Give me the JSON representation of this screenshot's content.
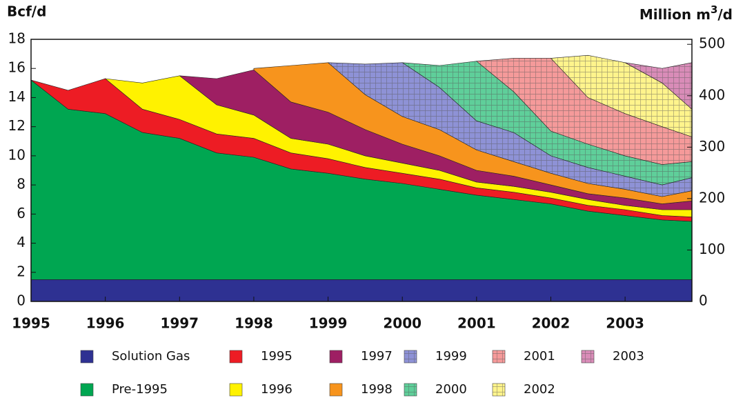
{
  "chart_data": {
    "type": "stacked_area",
    "ylabel": "Bcf/d",
    "y2label": "Million m",
    "y2label_sup": "3",
    "y2label_suffix": "/d",
    "x": [
      1995,
      1995.5,
      1996,
      1996.5,
      1997,
      1997.5,
      1998,
      1998.5,
      1999,
      1999.5,
      2000,
      2000.5,
      2001,
      2001.5,
      2002,
      2002.5,
      2003,
      2003.5,
      2003.9
    ],
    "xlim": [
      1995,
      2003.9
    ],
    "xticks": [
      1995,
      1996,
      1997,
      1998,
      1999,
      2000,
      2001,
      2002,
      2003
    ],
    "ylim": [
      0,
      18
    ],
    "yticks": [
      0,
      2,
      4,
      6,
      8,
      10,
      12,
      14,
      16,
      18
    ],
    "y2lim": [
      0,
      509.7
    ],
    "y2ticks": [
      0,
      100,
      200,
      300,
      400,
      500
    ],
    "series": [
      {
        "name": "Solution Gas",
        "color": "#2e3192",
        "hatch": false,
        "values": [
          1.5,
          1.5,
          1.5,
          1.5,
          1.5,
          1.5,
          1.5,
          1.5,
          1.5,
          1.5,
          1.5,
          1.5,
          1.5,
          1.5,
          1.5,
          1.5,
          1.5,
          1.5,
          1.5
        ]
      },
      {
        "name": "Pre-1995",
        "color": "#00a651",
        "hatch": false,
        "values": [
          13.7,
          11.7,
          11.4,
          10.1,
          9.7,
          8.7,
          8.4,
          7.6,
          7.3,
          6.9,
          6.6,
          6.2,
          5.8,
          5.5,
          5.2,
          4.7,
          4.4,
          4.1,
          4.0
        ]
      },
      {
        "name": "1995",
        "color": "#ed1c24",
        "hatch": false,
        "values": [
          0,
          1.3,
          2.4,
          1.6,
          1.3,
          1.3,
          1.3,
          1.1,
          1.0,
          0.8,
          0.7,
          0.7,
          0.5,
          0.5,
          0.4,
          0.4,
          0.4,
          0.3,
          0.3
        ]
      },
      {
        "name": "1996",
        "color": "#fff200",
        "hatch": false,
        "values": [
          null,
          null,
          0,
          1.8,
          3.0,
          2.0,
          1.6,
          1.0,
          1.0,
          0.8,
          0.7,
          0.6,
          0.4,
          0.4,
          0.4,
          0.4,
          0.3,
          0.4,
          0.5
        ]
      },
      {
        "name": "1997",
        "color": "#9e1f63",
        "hatch": false,
        "values": [
          null,
          null,
          null,
          null,
          0,
          1.8,
          3.1,
          2.5,
          2.2,
          1.8,
          1.3,
          1.0,
          0.8,
          0.7,
          0.5,
          0.4,
          0.5,
          0.4,
          0.6
        ]
      },
      {
        "name": "1998",
        "color": "#f7941d",
        "hatch": false,
        "values": [
          null,
          null,
          null,
          null,
          null,
          null,
          0.1,
          2.5,
          3.4,
          2.4,
          1.9,
          1.8,
          1.4,
          1.0,
          0.8,
          0.7,
          0.6,
          0.5,
          0.7
        ]
      },
      {
        "name": "1999",
        "color": "#8e92d6",
        "hatch": true,
        "values": [
          null,
          null,
          null,
          null,
          null,
          null,
          null,
          null,
          0,
          2.1,
          3.7,
          2.9,
          2.0,
          2.0,
          1.2,
          1.1,
          0.9,
          0.8,
          0.9
        ]
      },
      {
        "name": "2000",
        "color": "#5fcf9a",
        "hatch": true,
        "values": [
          null,
          null,
          null,
          null,
          null,
          null,
          null,
          null,
          null,
          null,
          0,
          1.5,
          4.1,
          2.8,
          1.7,
          1.6,
          1.4,
          1.4,
          1.1
        ]
      },
      {
        "name": "2001",
        "color": "#f59a9a",
        "hatch": true,
        "values": [
          null,
          null,
          null,
          null,
          null,
          null,
          null,
          null,
          null,
          null,
          null,
          null,
          0,
          2.3,
          5.0,
          3.2,
          2.9,
          2.6,
          1.7
        ]
      },
      {
        "name": "2002",
        "color": "#fff48c",
        "hatch": true,
        "values": [
          null,
          null,
          null,
          null,
          null,
          null,
          null,
          null,
          null,
          null,
          null,
          null,
          null,
          null,
          0,
          2.9,
          3.5,
          3.0,
          1.9
        ]
      },
      {
        "name": "2003",
        "color": "#d98cb8",
        "hatch": true,
        "values": [
          null,
          null,
          null,
          null,
          null,
          null,
          null,
          null,
          null,
          null,
          null,
          null,
          null,
          null,
          null,
          null,
          0,
          1.0,
          3.2
        ]
      }
    ]
  }
}
